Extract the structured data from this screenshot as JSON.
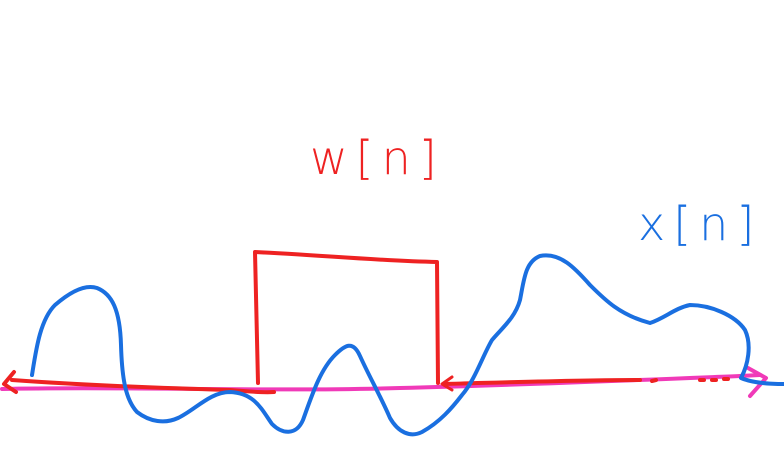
{
  "labels": {
    "window_label": "w[n]",
    "signal_label": "x[n]"
  },
  "colors": {
    "window": "#ee2222",
    "signal": "#1a6fe0",
    "axis": "#f03ab8",
    "background": "#ffffff"
  }
}
